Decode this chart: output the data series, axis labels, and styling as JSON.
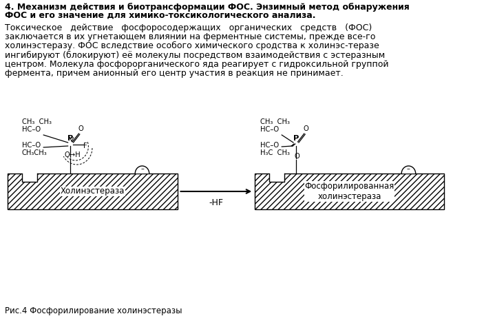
{
  "title_line1": "4. Механизм действия и биотрансформации ФОС. Энзимный метод обнаружения",
  "title_line2": "ФОС и его значение для химико-токсикологического анализа.",
  "para_lines": [
    "Токсическое   действие   фосфоросодержащих   органических   средств   (ФОС)",
    "заключается в их угнетающем влиянии на ферментные системы, прежде все-го",
    "холинэстеразу. ФОС вследствие особого химического сродства к холинэс-теразе",
    "ингибируют (блокируют) её молекулы посредством взаимодействия с эстеразным",
    "центром. Молекула фосфорорганического яда реагирует с гидроксильной группой",
    "фермента, причем анионный его центр участия в реакция не принимает."
  ],
  "caption": "Рис.4 Фосфорилирование холинэстеразы",
  "bg_color": "#ffffff",
  "text_color": "#000000",
  "enzyme_label_left": "Холинэстераза",
  "enzyme_label_right": "Фосфорилированная\nхолинэстераза",
  "arrow_label": "-HF"
}
